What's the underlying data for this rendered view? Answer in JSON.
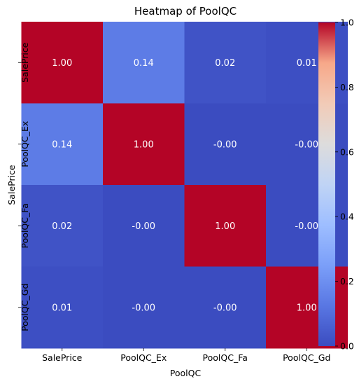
{
  "chart_data": {
    "type": "heatmap",
    "title": "Heatmap of PoolQC",
    "xlabel": "PoolQC",
    "ylabel": "SalePrice",
    "x_categories": [
      "SalePrice",
      "PoolQC_Ex",
      "PoolQC_Fa",
      "PoolQC_Gd"
    ],
    "y_categories": [
      "SalePrice",
      "PoolQC_Ex",
      "PoolQC_Fa",
      "PoolQC_Gd"
    ],
    "values": [
      [
        1.0,
        0.14,
        0.02,
        0.01
      ],
      [
        0.14,
        1.0,
        -0.0,
        -0.0
      ],
      [
        0.02,
        -0.0,
        1.0,
        -0.0
      ],
      [
        0.01,
        -0.0,
        -0.0,
        1.0
      ]
    ],
    "annotations": [
      [
        "1.00",
        "0.14",
        "0.02",
        "0.01"
      ],
      [
        "0.14",
        "1.00",
        "-0.00",
        "-0.00"
      ],
      [
        "0.02",
        "-0.00",
        "1.00",
        "-0.00"
      ],
      [
        "0.01",
        "-0.00",
        "-0.00",
        "1.00"
      ]
    ],
    "colormap": "coolwarm",
    "vmin": 0.0,
    "vmax": 1.0,
    "colorbar_ticks": [
      0.0,
      0.2,
      0.4,
      0.6,
      0.8,
      1.0
    ],
    "colorbar_tick_labels": [
      "0.0",
      "0.2",
      "0.4",
      "0.6",
      "0.8",
      "1.0"
    ],
    "colorbar_position": "right",
    "grid": false
  }
}
